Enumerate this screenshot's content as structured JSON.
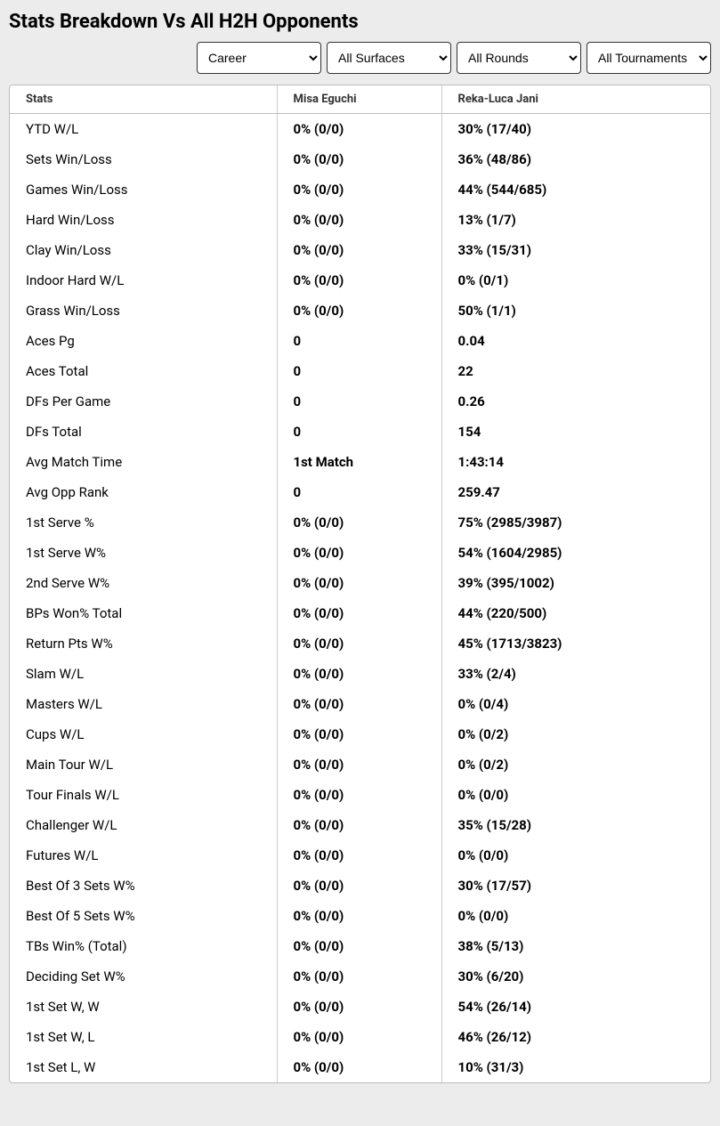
{
  "title": "Stats Breakdown Vs All H2H Opponents",
  "filters": {
    "period": "Career",
    "surface": "All Surfaces",
    "round": "All Rounds",
    "tournament": "All Tournaments"
  },
  "columns": {
    "stats": "Stats",
    "player1": "Misa Eguchi",
    "player2": "Reka-Luca Jani"
  },
  "rows": [
    {
      "stat": "YTD W/L",
      "p1": "0% (0/0)",
      "p2": "30% (17/40)"
    },
    {
      "stat": "Sets Win/Loss",
      "p1": "0% (0/0)",
      "p2": "36% (48/86)"
    },
    {
      "stat": "Games Win/Loss",
      "p1": "0% (0/0)",
      "p2": "44% (544/685)"
    },
    {
      "stat": "Hard Win/Loss",
      "p1": "0% (0/0)",
      "p2": "13% (1/7)"
    },
    {
      "stat": "Clay Win/Loss",
      "p1": "0% (0/0)",
      "p2": "33% (15/31)"
    },
    {
      "stat": "Indoor Hard W/L",
      "p1": "0% (0/0)",
      "p2": "0% (0/1)"
    },
    {
      "stat": "Grass Win/Loss",
      "p1": "0% (0/0)",
      "p2": "50% (1/1)"
    },
    {
      "stat": "Aces Pg",
      "p1": "0",
      "p2": "0.04"
    },
    {
      "stat": "Aces Total",
      "p1": "0",
      "p2": "22"
    },
    {
      "stat": "DFs Per Game",
      "p1": "0",
      "p2": "0.26"
    },
    {
      "stat": "DFs Total",
      "p1": "0",
      "p2": "154"
    },
    {
      "stat": "Avg Match Time",
      "p1": "1st Match",
      "p2": "1:43:14"
    },
    {
      "stat": "Avg Opp Rank",
      "p1": "0",
      "p2": "259.47"
    },
    {
      "stat": "1st Serve %",
      "p1": "0% (0/0)",
      "p2": "75% (2985/3987)"
    },
    {
      "stat": "1st Serve W%",
      "p1": "0% (0/0)",
      "p2": "54% (1604/2985)"
    },
    {
      "stat": "2nd Serve W%",
      "p1": "0% (0/0)",
      "p2": "39% (395/1002)"
    },
    {
      "stat": "BPs Won% Total",
      "p1": "0% (0/0)",
      "p2": "44% (220/500)"
    },
    {
      "stat": "Return Pts W%",
      "p1": "0% (0/0)",
      "p2": "45% (1713/3823)"
    },
    {
      "stat": "Slam W/L",
      "p1": "0% (0/0)",
      "p2": "33% (2/4)"
    },
    {
      "stat": "Masters W/L",
      "p1": "0% (0/0)",
      "p2": "0% (0/4)"
    },
    {
      "stat": "Cups W/L",
      "p1": "0% (0/0)",
      "p2": "0% (0/2)"
    },
    {
      "stat": "Main Tour W/L",
      "p1": "0% (0/0)",
      "p2": "0% (0/2)"
    },
    {
      "stat": "Tour Finals W/L",
      "p1": "0% (0/0)",
      "p2": "0% (0/0)"
    },
    {
      "stat": "Challenger W/L",
      "p1": "0% (0/0)",
      "p2": "35% (15/28)"
    },
    {
      "stat": "Futures W/L",
      "p1": "0% (0/0)",
      "p2": "0% (0/0)"
    },
    {
      "stat": "Best Of 3 Sets W%",
      "p1": "0% (0/0)",
      "p2": "30% (17/57)"
    },
    {
      "stat": "Best Of 5 Sets W%",
      "p1": "0% (0/0)",
      "p2": "0% (0/0)"
    },
    {
      "stat": "TBs Win% (Total)",
      "p1": "0% (0/0)",
      "p2": "38% (5/13)"
    },
    {
      "stat": "Deciding Set W%",
      "p1": "0% (0/0)",
      "p2": "30% (6/20)"
    },
    {
      "stat": "1st Set W, W",
      "p1": "0% (0/0)",
      "p2": "54% (26/14)"
    },
    {
      "stat": "1st Set W, L",
      "p1": "0% (0/0)",
      "p2": "46% (26/12)"
    },
    {
      "stat": "1st Set L, W",
      "p1": "0% (0/0)",
      "p2": "10% (31/3)"
    }
  ]
}
